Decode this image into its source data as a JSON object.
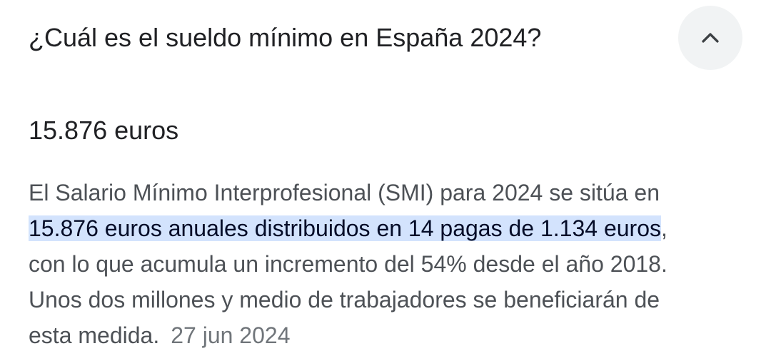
{
  "faq": {
    "question": "¿Cuál es el sueldo mínimo en España 2024?",
    "toggle_icon": "chevron-up-icon",
    "answer_heading": "15.876 euros",
    "description": {
      "line1": "El Salario Mínimo Interprofesional (SMI) para 2024 se sitúa en",
      "highlight": "15.876 euros anuales distribuidos en 14 pagas de 1.134 euros",
      "after_highlight": ",",
      "line3": "con lo que acumula un incremento del 54% desde el año 2018.",
      "line4": "Unos dos millones y medio de trabajadores se beneficiarán de",
      "line5": "esta medida.",
      "date": "27 jun 2024"
    }
  },
  "colors": {
    "highlight_bg": "#d3e3fd",
    "toggle_bg": "#f1f3f4",
    "text_primary": "#202124",
    "text_secondary": "#4d5156"
  }
}
